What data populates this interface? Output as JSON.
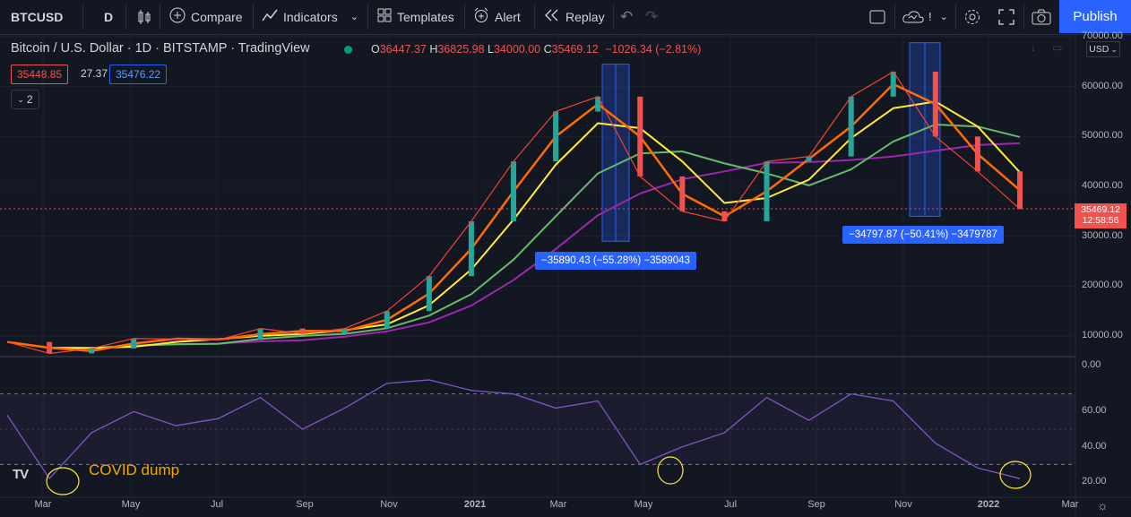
{
  "toolbar": {
    "symbol": "BTCUSD",
    "interval": "D",
    "compare": "Compare",
    "indicators": "Indicators",
    "templates": "Templates",
    "alert": "Alert",
    "replay": "Replay",
    "publish": "Publish"
  },
  "legend": {
    "title": "Bitcoin / U.S. Dollar · 1D · BITSTAMP · TradingView",
    "o_label": "O",
    "o": "36447.37",
    "h_label": "H",
    "h": "36825.98",
    "l_label": "L",
    "l": "34000.00",
    "c_label": "C",
    "c": "35469.12",
    "change": "−1026.34 (−2.81%)",
    "bid": "35448.85",
    "spread": "27.37",
    "ask": "35476.22",
    "collapse_count": "2"
  },
  "price_axis": {
    "currency": "USD",
    "ticks": [
      "70000.00",
      "60000.00",
      "50000.00",
      "40000.00",
      "30000.00",
      "20000.00",
      "10000.00"
    ],
    "last_price": "35469.12",
    "countdown": "12:58:56"
  },
  "rsi_axis": {
    "ticks": [
      "0.00",
      "60.00",
      "40.00",
      "20.00"
    ]
  },
  "time_axis": [
    "Mar",
    "May",
    "Jul",
    "Sep",
    "Nov",
    "2021",
    "Mar",
    "May",
    "Jul",
    "Sep",
    "Nov",
    "2022",
    "Mar"
  ],
  "measurements": [
    {
      "label": "−35890.43 (−55.28%) −3589043"
    },
    {
      "label": "−34797.87 (−50.41%) −3479787"
    }
  ],
  "annotation": "COVID dump",
  "logo_text": "TV",
  "colors": {
    "background": "#131722",
    "candle_up": "#26a69a",
    "candle_down": "#ef5350",
    "ma_orange": "#ff6d00",
    "ma_red": "#f44336",
    "ma_yellow": "#ffeb3b",
    "ma_green": "#66bb6a",
    "ma_purple": "#9c27b0",
    "rsi": "#7e57c2",
    "accent": "#2962ff"
  },
  "chart_data": {
    "type": "line",
    "title": "Bitcoin / U.S. Dollar · 1D · BITSTAMP · TradingView",
    "x": [
      "2020-02",
      "2020-03",
      "2020-04",
      "2020-05",
      "2020-06",
      "2020-07",
      "2020-08",
      "2020-09",
      "2020-10",
      "2020-11",
      "2020-12",
      "2021-01",
      "2021-02",
      "2021-03",
      "2021-04",
      "2021-05",
      "2021-06",
      "2021-07",
      "2021-08",
      "2021-09",
      "2021-10",
      "2021-11",
      "2021-12",
      "2022-01",
      "2022-02"
    ],
    "series": [
      {
        "values": [
          8800,
          6500,
          7500,
          9500,
          9400,
          9200,
          11500,
          10500,
          11500,
          15000,
          22000,
          33000,
          45000,
          55000,
          58000,
          42000,
          35000,
          33000,
          45000,
          46000,
          58000,
          63000,
          50000,
          43000,
          35469
        ]
      }
    ],
    "ylim": [
      0,
      70000
    ],
    "rsi": {
      "values": [
        58,
        22,
        48,
        60,
        52,
        56,
        68,
        50,
        62,
        76,
        78,
        72,
        70,
        62,
        66,
        30,
        40,
        48,
        68,
        55,
        70,
        66,
        42,
        28,
        22
      ],
      "ylim": [
        10,
        80
      ],
      "bands": [
        30,
        70
      ]
    }
  }
}
